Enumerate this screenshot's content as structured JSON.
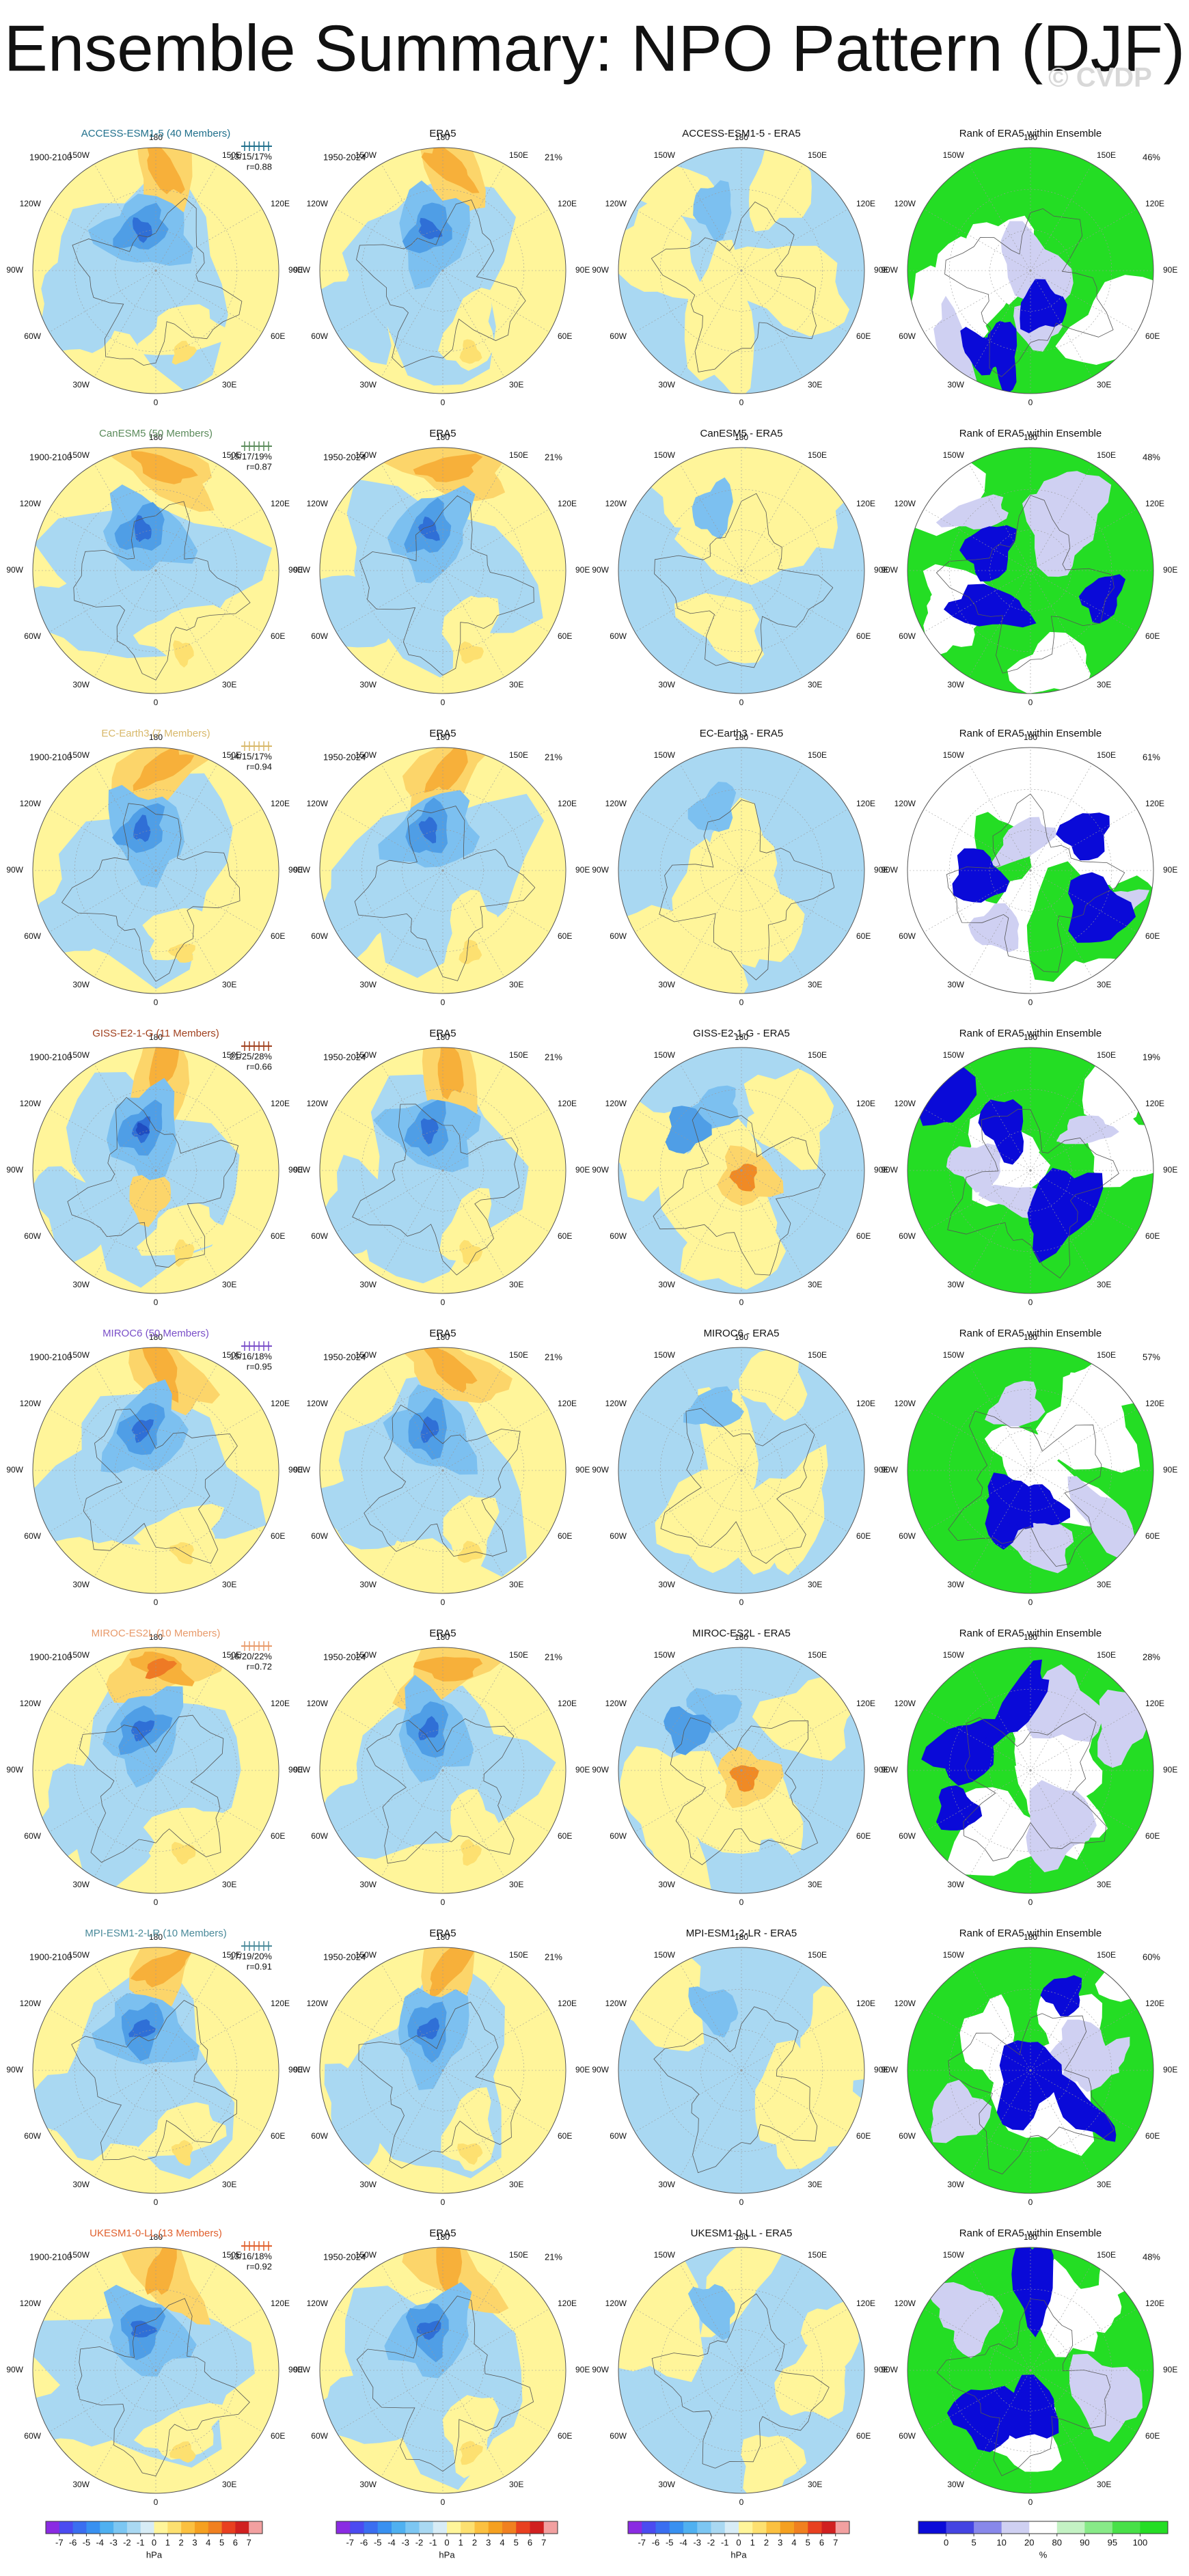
{
  "title": "Ensemble Summary: NPO Pattern (DJF)",
  "watermark": "© CVDP",
  "lon_labels": [
    "180",
    "150E",
    "120E",
    "90E",
    "60E",
    "30E",
    "0",
    "30W",
    "60W",
    "90W",
    "120W",
    "150W"
  ],
  "rows": [
    {
      "model": "ACCESS-ESM1-5 (40 Members)",
      "color": "#1f6f8b",
      "period": "1900-2100",
      "stats": "13/15/17%",
      "r": "r=0.88",
      "era5_title": "ERA5",
      "era5_period": "1950-2024",
      "era5_pct": "21%",
      "diff_title": "ACCESS-ESM1-5 - ERA5",
      "rank_title": "Rank of ERA5 within Ensemble",
      "rank_pct": "46%"
    },
    {
      "model": "CanESM5 (50 Members)",
      "color": "#5a8a5a",
      "period": "1900-2100",
      "stats": "15/17/19%",
      "r": "r=0.87",
      "era5_title": "ERA5",
      "era5_period": "1950-2024",
      "era5_pct": "21%",
      "diff_title": "CanESM5 - ERA5",
      "rank_title": "Rank of ERA5 within Ensemble",
      "rank_pct": "48%"
    },
    {
      "model": "EC-Earth3 (7 Members)",
      "color": "#d8b86a",
      "period": "1900-2100",
      "stats": "14/15/17%",
      "r": "r=0.94",
      "era5_title": "ERA5",
      "era5_period": "1950-2024",
      "era5_pct": "21%",
      "diff_title": "EC-Earth3 - ERA5",
      "rank_title": "Rank of ERA5 within Ensemble",
      "rank_pct": "61%"
    },
    {
      "model": "GISS-E2-1-G (11 Members)",
      "color": "#a0401e",
      "period": "1900-2100",
      "stats": "21/25/28%",
      "r": "r=0.66",
      "era5_title": "ERA5",
      "era5_period": "1950-2024",
      "era5_pct": "21%",
      "diff_title": "GISS-E2-1-G - ERA5",
      "rank_title": "Rank of ERA5 within Ensemble",
      "rank_pct": "19%"
    },
    {
      "model": "MIROC6 (50 Members)",
      "color": "#7a4fc8",
      "period": "1900-2100",
      "stats": "15/16/18%",
      "r": "r=0.95",
      "era5_title": "ERA5",
      "era5_period": "1950-2024",
      "era5_pct": "21%",
      "diff_title": "MIROC6 - ERA5",
      "rank_title": "Rank of ERA5 within Ensemble",
      "rank_pct": "57%"
    },
    {
      "model": "MIROC-ES2L (10 Members)",
      "color": "#e89a6a",
      "period": "1900-2100",
      "stats": "16/20/22%",
      "r": "r=0.72",
      "era5_title": "ERA5",
      "era5_period": "1950-2024",
      "era5_pct": "21%",
      "diff_title": "MIROC-ES2L - ERA5",
      "rank_title": "Rank of ERA5 within Ensemble",
      "rank_pct": "28%"
    },
    {
      "model": "MPI-ESM1-2-LR (10 Members)",
      "color": "#4a8a9a",
      "period": "1900-2100",
      "stats": "17/19/20%",
      "r": "r=0.91",
      "era5_title": "ERA5",
      "era5_period": "1950-2024",
      "era5_pct": "21%",
      "diff_title": "MPI-ESM1-2-LR - ERA5",
      "rank_title": "Rank of ERA5 within Ensemble",
      "rank_pct": "60%"
    },
    {
      "model": "UKESM1-0-LL (13 Members)",
      "color": "#e0602e",
      "period": "1900-2100",
      "stats": "13/16/18%",
      "r": "r=0.92",
      "era5_title": "ERA5",
      "era5_period": "1950-2024",
      "era5_pct": "21%",
      "diff_title": "UKESM1-0-LL - ERA5",
      "rank_title": "Rank of ERA5 within Ensemble",
      "rank_pct": "48%"
    }
  ],
  "colorbar": {
    "ticks": [
      -7,
      -6,
      -5,
      -4,
      -3,
      -2,
      -1,
      0,
      1,
      2,
      3,
      4,
      5,
      6,
      7
    ],
    "unit": "hPa"
  },
  "rank_colorbar": {
    "ticks": [
      0,
      5,
      10,
      20,
      80,
      90,
      95,
      100
    ],
    "unit": "%"
  }
}
